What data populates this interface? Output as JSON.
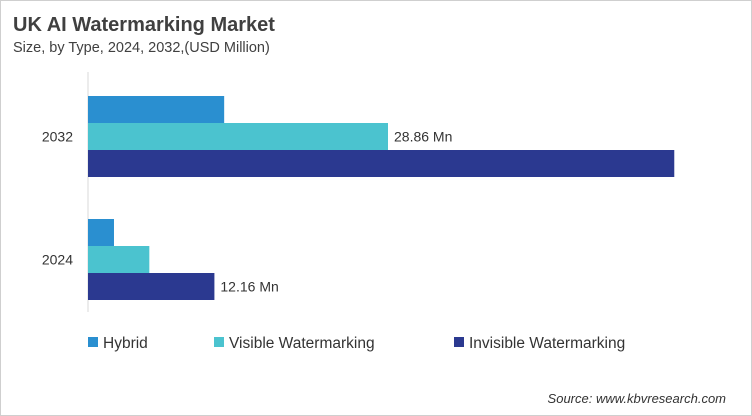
{
  "chart_data": {
    "type": "bar",
    "orientation": "horizontal",
    "title": "UK AI Watermarking Market",
    "subtitle": "Size, by Type, 2024, 2032,(USD Million)",
    "categories": [
      "2032",
      "2024"
    ],
    "series": [
      {
        "name": "Hybrid",
        "color": "#2a8fd0",
        "values": [
          13.1,
          2.5
        ]
      },
      {
        "name": "Visible Watermarking",
        "color": "#4bc3cf",
        "values": [
          28.86,
          5.9
        ]
      },
      {
        "name": "Invisible Watermarking",
        "color": "#2b3990",
        "values": [
          56.4,
          12.16
        ]
      }
    ],
    "data_labels": [
      {
        "category": "2032",
        "series": "Visible Watermarking",
        "text": "28.86 Mn"
      },
      {
        "category": "2024",
        "series": "Invisible Watermarking",
        "text": "12.16 Mn"
      }
    ],
    "xlim": [
      0,
      60
    ],
    "grid": false,
    "legend_position": "bottom",
    "source": "Source: www.kbvresearch.com"
  }
}
